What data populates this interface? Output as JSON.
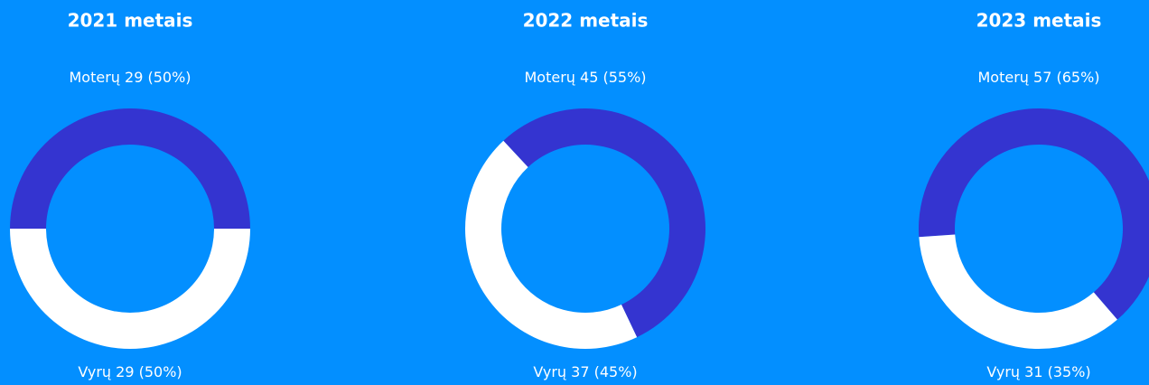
{
  "chart_data": [
    {
      "type": "pie",
      "title": "2021 metais",
      "categories": [
        "Moterų",
        "Vyrų"
      ],
      "values": [
        29,
        29
      ],
      "value_labels": [
        "29 (50%)",
        "29 (50%)"
      ],
      "colors": [
        "#3434d0",
        "#ffffff"
      ]
    },
    {
      "type": "pie",
      "title": "2022 metais",
      "categories": [
        "Moterų",
        "Vyrų"
      ],
      "values": [
        45,
        37
      ],
      "value_labels": [
        "45 (55%)",
        "37 (45%)"
      ],
      "colors": [
        "#3434d0",
        "#ffffff"
      ]
    },
    {
      "type": "pie",
      "title": "2023 metais",
      "categories": [
        "Moterų",
        "Vyrų"
      ],
      "values": [
        57,
        31
      ],
      "value_labels": [
        "57 (65%)",
        "31 (35%)"
      ],
      "colors": [
        "#3434d0",
        "#ffffff"
      ]
    }
  ]
}
